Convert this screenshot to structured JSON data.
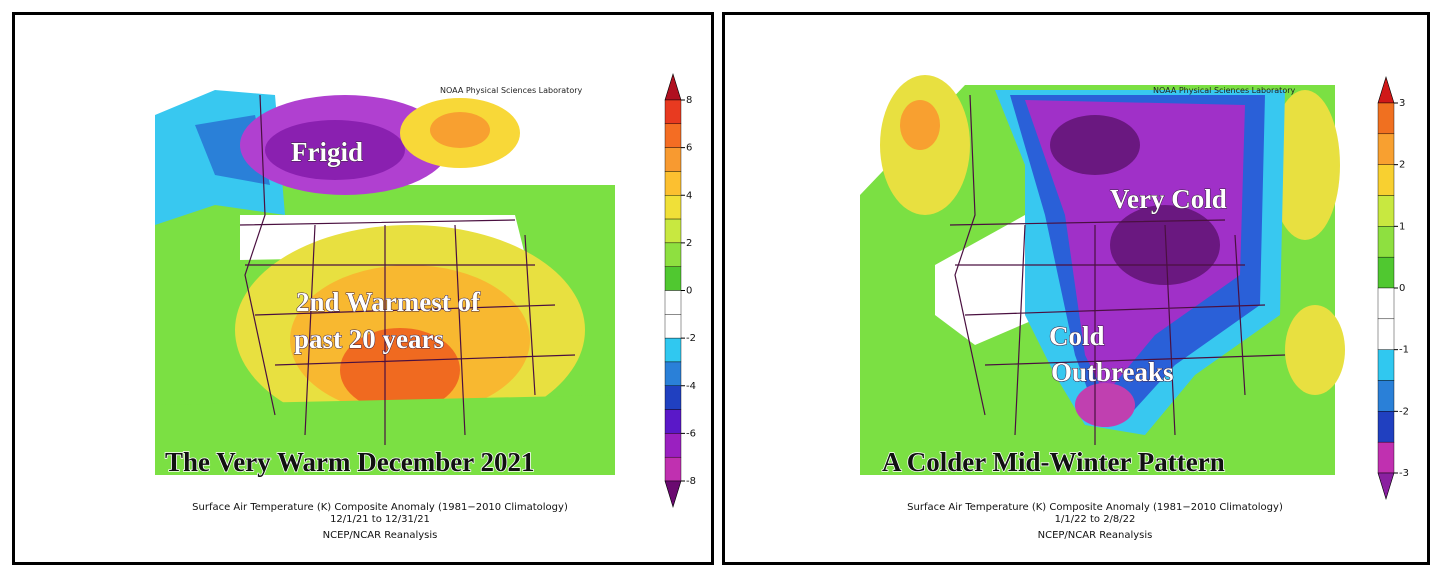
{
  "panels": [
    {
      "credit": "NOAA Physical Sciences Laboratory",
      "labels": [
        "Frigid",
        "2nd Warmest of",
        "past 20 years"
      ],
      "title": "The Very Warm December 2021",
      "caption": [
        "Surface Air Temperature (K) Composite Anomaly (1981−2010 Climatology)",
        "12/1/21  to 12/31/21",
        "NCEP/NCAR Reanalysis"
      ],
      "colorbar": {
        "ticks": [
          8,
          6,
          4,
          2,
          0,
          -2,
          -4,
          -6,
          -8
        ]
      }
    },
    {
      "credit": "NOAA Physical Sciences Laboratory",
      "labels": [
        "Very Cold",
        "Cold",
        "Outbreaks"
      ],
      "title": "A Colder Mid-Winter Pattern",
      "caption": [
        "Surface Air Temperature (K) Composite Anomaly (1981−2010 Climatology)",
        "1/1/22  to 2/8/22",
        "NCEP/NCAR Reanalysis"
      ],
      "colorbar": {
        "ticks": [
          3,
          2,
          1,
          0,
          -1,
          -2,
          -3
        ]
      }
    }
  ]
}
